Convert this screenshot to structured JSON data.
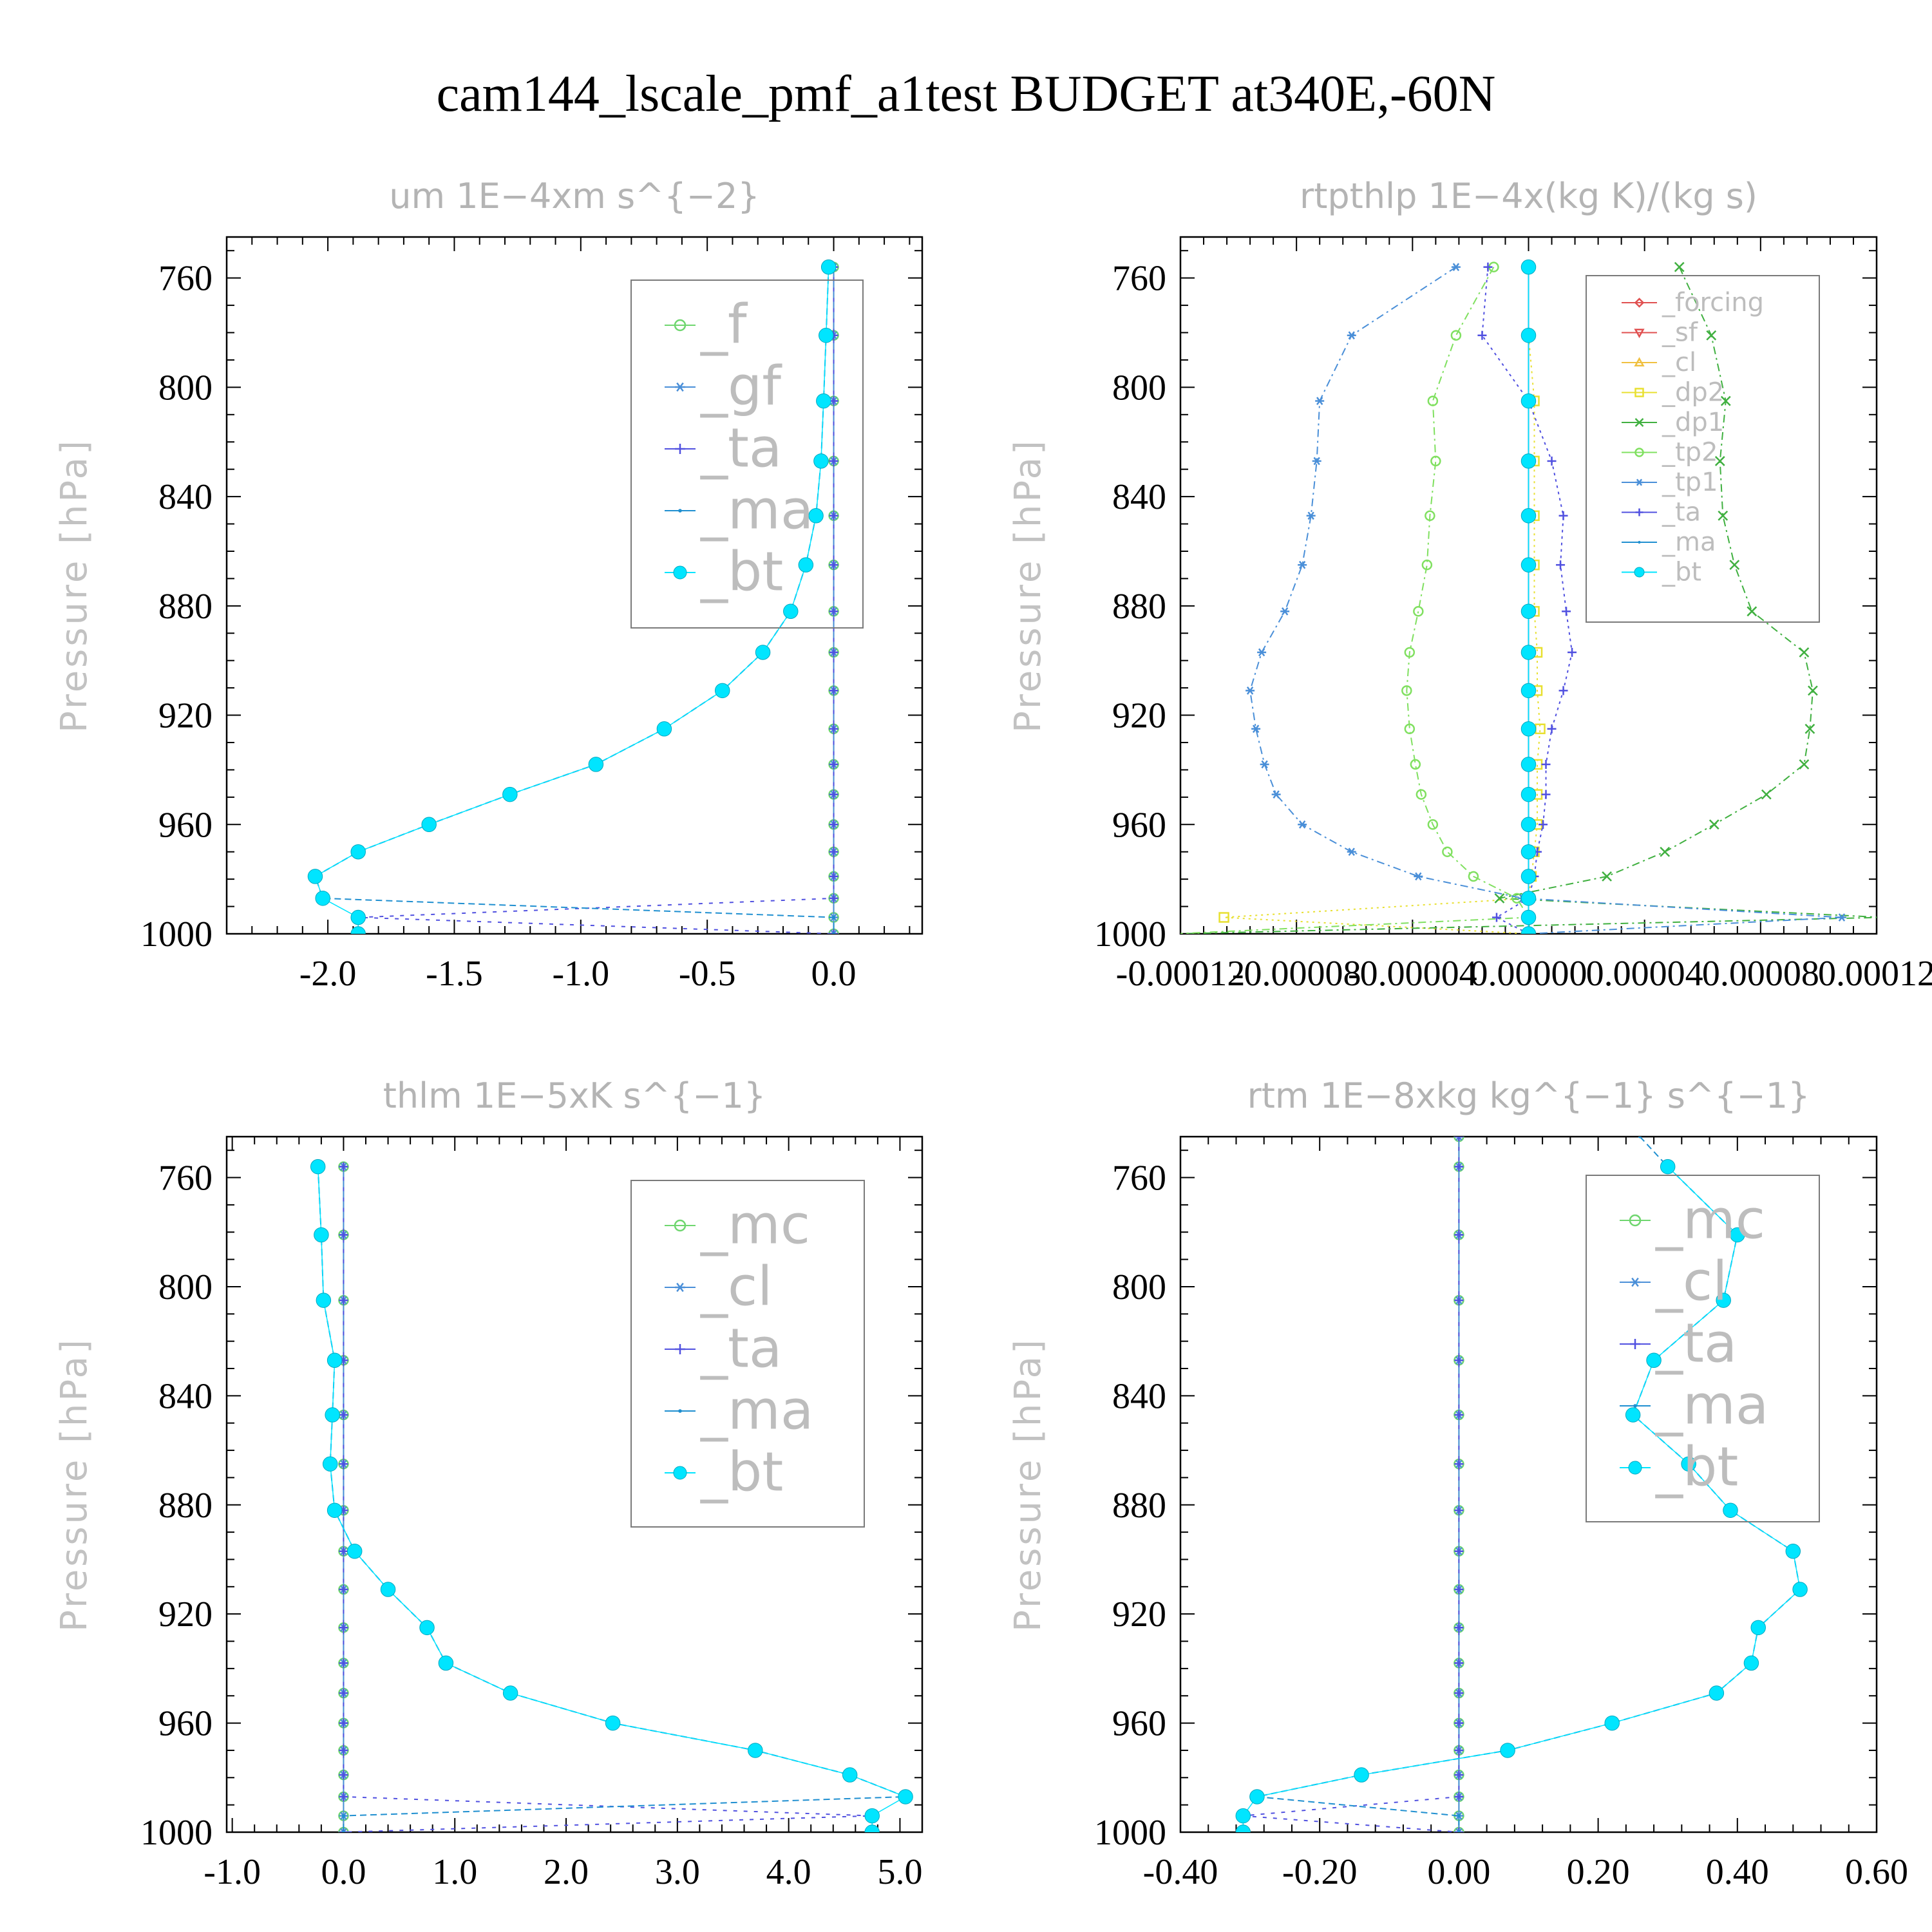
{
  "suptitle": "cam144_lscale_pmf_a1test  BUDGET at340E,-60N",
  "chart_data": [
    {
      "type": "line",
      "title": "um   1E−4xm s^{−2}",
      "ylabel": "Pressure [hPa]",
      "ylim": [
        1000,
        745
      ],
      "yticks": [
        760,
        800,
        840,
        880,
        920,
        960,
        1000
      ],
      "xlim": [
        -2.4,
        0.35
      ],
      "xticks": [
        -2.0,
        -1.5,
        -1.0,
        -0.5,
        0.0
      ],
      "xtick_labels": [
        "-2.0",
        "-1.5",
        "-1.0",
        "-0.5",
        "0.0"
      ],
      "legend": {
        "position": "top-right",
        "size": "large"
      },
      "levels": [
        756,
        781,
        805,
        827,
        847,
        865,
        882,
        897,
        911,
        925,
        938,
        949,
        960,
        970,
        979,
        987,
        994,
        1000
      ],
      "series": [
        {
          "name": "_f",
          "color": "#6fd66f",
          "marker": "circle",
          "values": [
            0,
            0,
            0,
            0,
            0,
            0,
            0,
            0,
            0,
            0,
            0,
            0,
            0,
            0,
            0,
            0,
            0,
            0
          ]
        },
        {
          "name": "_gf",
          "color": "#4a8fd8",
          "marker": "asterisk",
          "values": [
            0,
            0,
            0,
            0,
            0,
            0,
            0,
            0,
            0,
            0,
            0,
            0,
            0,
            0,
            0,
            0,
            0,
            0
          ]
        },
        {
          "name": "_ta",
          "color": "#5050e0",
          "marker": "plus",
          "values": [
            0,
            0,
            0,
            0,
            0,
            0,
            0,
            0,
            0,
            0,
            0,
            0,
            0,
            0,
            0,
            0,
            -1.88,
            0
          ],
          "dash": "6,10"
        },
        {
          "name": "_ma",
          "color": "#1f8fd0",
          "marker": "dot",
          "values": [
            -0.02,
            -0.03,
            -0.04,
            -0.05,
            -0.07,
            -0.11,
            -0.17,
            -0.28,
            -0.44,
            -0.67,
            -0.94,
            -1.28,
            -1.6,
            -1.88,
            -2.05,
            -2.02,
            0,
            0
          ],
          "dash": "10,6"
        },
        {
          "name": "_bt",
          "color": "#00e5ff",
          "marker": "filled",
          "values": [
            -0.02,
            -0.03,
            -0.04,
            -0.05,
            -0.07,
            -0.11,
            -0.17,
            -0.28,
            -0.44,
            -0.67,
            -0.94,
            -1.28,
            -1.6,
            -1.88,
            -2.05,
            -2.02,
            -1.88,
            -1.88
          ]
        }
      ]
    },
    {
      "type": "line",
      "title": "rtpthlp   1E−4x(kg K)/(kg s)",
      "ylabel": "Pressure [hPa]",
      "ylim": [
        1000,
        745
      ],
      "yticks": [
        760,
        800,
        840,
        880,
        920,
        960,
        1000
      ],
      "xlim": [
        -0.00012,
        0.00012
      ],
      "xticks": [
        -0.00012,
        -8e-05,
        -4e-05,
        0.0,
        4e-05,
        8e-05,
        0.00012
      ],
      "xtick_labels": [
        "-0.00012",
        "-0.00008",
        "-0.00004",
        "0.00000",
        "0.00004",
        "0.00008",
        "0.00012"
      ],
      "legend": {
        "position": "top-right",
        "size": "small"
      },
      "levels": [
        756,
        781,
        805,
        827,
        847,
        865,
        882,
        897,
        911,
        925,
        938,
        949,
        960,
        970,
        979,
        987,
        994,
        1000
      ],
      "series": [
        {
          "name": "_forcing",
          "color": "#e05050",
          "marker": "diamond",
          "values": [
            0,
            0,
            0,
            0,
            0,
            0,
            0,
            0,
            0,
            0,
            0,
            0,
            0,
            0,
            0,
            0,
            0,
            0
          ]
        },
        {
          "name": "_sf",
          "color": "#e05050",
          "marker": "tridown",
          "values": [
            0,
            0,
            0,
            0,
            0,
            0,
            0,
            0,
            0,
            0,
            0,
            0,
            0,
            0,
            0,
            0,
            0,
            0
          ]
        },
        {
          "name": "_cl",
          "color": "#f0c040",
          "marker": "triup",
          "values": [
            0,
            0,
            0,
            0,
            0,
            0,
            0,
            0,
            0,
            0,
            0,
            0,
            0,
            0,
            0,
            0,
            0,
            0
          ]
        },
        {
          "name": "_dp2",
          "color": "#e8e030",
          "marker": "square",
          "values": [
            0,
            0,
            2e-06,
            2e-06,
            2e-06,
            2e-06,
            2e-06,
            3e-06,
            3e-06,
            4e-06,
            3e-06,
            3e-06,
            3e-06,
            2e-06,
            1e-06,
            0,
            -0.000105,
            0
          ],
          "dash": "3,6"
        },
        {
          "name": "_dp1",
          "color": "#40b040",
          "marker": "cross",
          "values": [
            5.2e-05,
            6.3e-05,
            6.8e-05,
            6.6e-05,
            6.7e-05,
            7.1e-05,
            7.7e-05,
            9.5e-05,
            9.8e-05,
            9.7e-05,
            9.5e-05,
            8.2e-05,
            6.4e-05,
            4.7e-05,
            2.7e-05,
            -1e-05,
            0.000122,
            -0.000122
          ],
          "dash": "12,6,3,6"
        },
        {
          "name": "_tp2",
          "color": "#80e060",
          "marker": "circle",
          "values": [
            -1.2e-05,
            -2.5e-05,
            -3.3e-05,
            -3.2e-05,
            -3.4e-05,
            -3.5e-05,
            -3.8e-05,
            -4.1e-05,
            -4.2e-05,
            -4.1e-05,
            -3.9e-05,
            -3.7e-05,
            -3.3e-05,
            -2.8e-05,
            -1.9e-05,
            -4e-06,
            0,
            -0.000122
          ],
          "dash": "12,6,3,6"
        },
        {
          "name": "_tp1",
          "color": "#4a8fd8",
          "marker": "asterisk",
          "values": [
            -2.5e-05,
            -6.1e-05,
            -7.2e-05,
            -7.3e-05,
            -7.5e-05,
            -7.8e-05,
            -8.4e-05,
            -9.2e-05,
            -9.6e-05,
            -9.4e-05,
            -9.1e-05,
            -8.7e-05,
            -7.8e-05,
            -6.1e-05,
            -3.8e-05,
            -2e-06,
            0.000108,
            0
          ],
          "dash": "12,6,3,6"
        },
        {
          "name": "_ta",
          "color": "#5050e0",
          "marker": "plus",
          "values": [
            -1.4e-05,
            -1.6e-05,
            0,
            8e-06,
            1.2e-05,
            1.1e-05,
            1.3e-05,
            1.5e-05,
            1.2e-05,
            8e-06,
            6e-06,
            6e-06,
            5e-06,
            3e-06,
            2e-06,
            0,
            -1.1e-05,
            0
          ],
          "dash": "4,6"
        },
        {
          "name": "_ma",
          "color": "#1f8fd0",
          "marker": "dot",
          "values": [
            0,
            0,
            0,
            0,
            0,
            0,
            0,
            0,
            0,
            0,
            0,
            0,
            0,
            0,
            0,
            0,
            0,
            0
          ]
        },
        {
          "name": "_bt",
          "color": "#00e5ff",
          "marker": "filled",
          "values": [
            0,
            0,
            0,
            0,
            0,
            0,
            0,
            0,
            0,
            0,
            0,
            0,
            0,
            0,
            0,
            0,
            0,
            0
          ]
        }
      ]
    },
    {
      "type": "line",
      "title": "thlm   1E−5xK s^{−1}",
      "ylabel": "Pressure [hPa]",
      "ylim": [
        1000,
        745
      ],
      "yticks": [
        760,
        800,
        840,
        880,
        920,
        960,
        1000
      ],
      "xlim": [
        -1.05,
        5.2
      ],
      "xticks": [
        -1.0,
        0.0,
        1.0,
        2.0,
        3.0,
        4.0,
        5.0
      ],
      "xtick_labels": [
        "-1.0",
        "0.0",
        "1.0",
        "2.0",
        "3.0",
        "4.0",
        "5.0"
      ],
      "legend": {
        "position": "top-right",
        "size": "large"
      },
      "levels": [
        756,
        781,
        805,
        827,
        847,
        865,
        882,
        897,
        911,
        925,
        938,
        949,
        960,
        970,
        979,
        987,
        994,
        1000
      ],
      "series": [
        {
          "name": "_mc",
          "color": "#6fd66f",
          "marker": "circle",
          "values": [
            0,
            0,
            0,
            0,
            0,
            0,
            0,
            0,
            0,
            0,
            0,
            0,
            0,
            0,
            0,
            0,
            0,
            0
          ]
        },
        {
          "name": "_cl",
          "color": "#4a8fd8",
          "marker": "asterisk",
          "values": [
            0,
            0,
            0,
            0,
            0,
            0,
            0,
            0,
            0,
            0,
            0,
            0,
            0,
            0,
            0,
            0,
            0,
            0
          ]
        },
        {
          "name": "_ta",
          "color": "#5050e0",
          "marker": "plus",
          "values": [
            0,
            0,
            0,
            0,
            0,
            0,
            0,
            0,
            0,
            0,
            0,
            0,
            0,
            0,
            0,
            0,
            4.75,
            0
          ],
          "dash": "6,10"
        },
        {
          "name": "_ma",
          "color": "#1f8fd0",
          "marker": "dot",
          "values": [
            -0.23,
            -0.2,
            -0.18,
            -0.08,
            -0.1,
            -0.12,
            -0.08,
            0.1,
            0.4,
            0.75,
            0.92,
            1.5,
            2.42,
            3.7,
            4.55,
            5.05,
            0,
            0
          ],
          "dash": "10,6"
        },
        {
          "name": "_bt",
          "color": "#00e5ff",
          "marker": "filled",
          "values": [
            -0.23,
            -0.2,
            -0.18,
            -0.08,
            -0.1,
            -0.12,
            -0.08,
            0.1,
            0.4,
            0.75,
            0.92,
            1.5,
            2.42,
            3.7,
            4.55,
            5.05,
            4.75,
            4.75
          ]
        }
      ]
    },
    {
      "type": "line",
      "title": "rtm   1E−8xkg kg^{−1} s^{−1}",
      "ylabel": "Pressure [hPa]",
      "ylim": [
        1000,
        745
      ],
      "yticks": [
        760,
        800,
        840,
        880,
        920,
        960,
        1000
      ],
      "xlim": [
        -0.4,
        0.6
      ],
      "xticks": [
        -0.4,
        -0.2,
        0.0,
        0.2,
        0.4,
        0.6
      ],
      "xtick_labels": [
        "-0.40",
        "-0.20",
        "0.00",
        "0.20",
        "0.40",
        "0.60"
      ],
      "legend": {
        "position": "top-right",
        "size": "large"
      },
      "levels": [
        745,
        756,
        781,
        805,
        827,
        847,
        865,
        882,
        897,
        911,
        925,
        938,
        949,
        960,
        970,
        979,
        987,
        994,
        1000
      ],
      "series": [
        {
          "name": "_mc",
          "color": "#6fd66f",
          "marker": "circle",
          "values": [
            0,
            0,
            0,
            0,
            0,
            0,
            0,
            0,
            0,
            0,
            0,
            0,
            0,
            0,
            0,
            0,
            0,
            0,
            0
          ]
        },
        {
          "name": "_cl",
          "color": "#4a8fd8",
          "marker": "asterisk",
          "values": [
            0,
            0,
            0,
            0,
            0,
            0,
            0,
            0,
            0,
            0,
            0,
            0,
            0,
            0,
            0,
            0,
            0,
            0,
            0
          ]
        },
        {
          "name": "_ta",
          "color": "#5050e0",
          "marker": "plus",
          "values": [
            0,
            0,
            0,
            0,
            0,
            0,
            0,
            0,
            0,
            0,
            0,
            0,
            0,
            0,
            0,
            0,
            0,
            -0.31,
            0
          ],
          "dash": "6,10"
        },
        {
          "name": "_ma",
          "color": "#1f8fd0",
          "marker": "dot",
          "values": [
            0.26,
            0.3,
            0.4,
            0.38,
            0.28,
            0.25,
            0.33,
            0.39,
            0.48,
            0.49,
            0.43,
            0.42,
            0.37,
            0.22,
            0.07,
            -0.14,
            -0.29,
            0,
            0
          ],
          "dash": "10,6"
        },
        {
          "name": "_bt",
          "color": "#00e5ff",
          "marker": "filled",
          "values": [
            null,
            0.3,
            0.4,
            0.38,
            0.28,
            0.25,
            0.33,
            0.39,
            0.48,
            0.49,
            0.43,
            0.42,
            0.37,
            0.22,
            0.07,
            -0.14,
            -0.29,
            -0.31,
            -0.31
          ]
        }
      ]
    }
  ]
}
